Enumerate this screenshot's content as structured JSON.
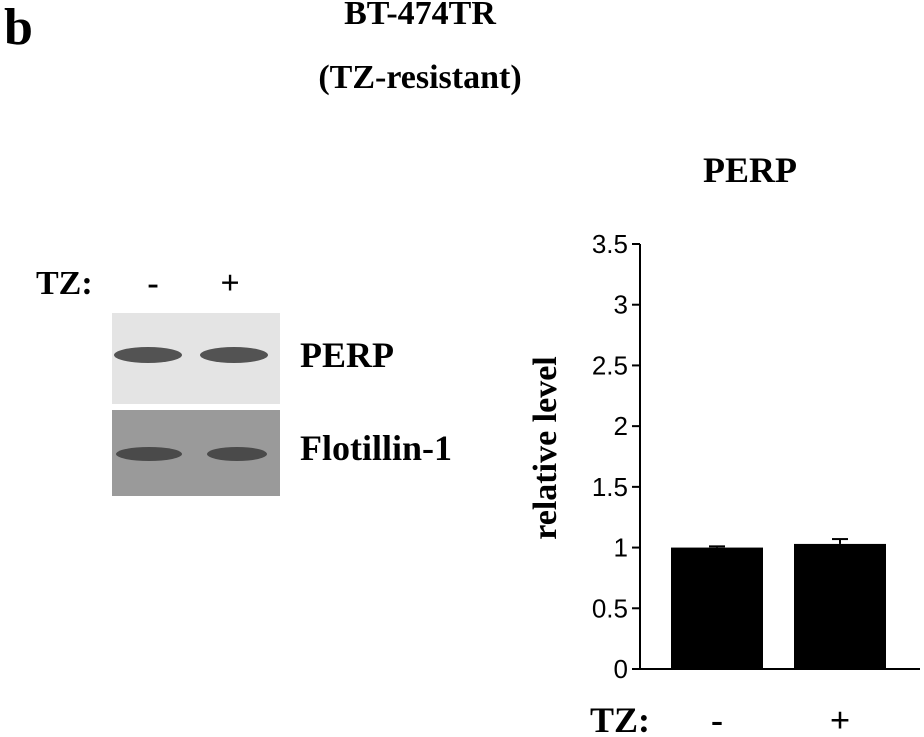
{
  "panel": {
    "letter": "b",
    "title_line1": "BT-474TR",
    "title_line2": "(TZ-resistant)"
  },
  "blot": {
    "treatment_label": "TZ:",
    "lanes": [
      "-",
      "+"
    ],
    "rows": [
      {
        "label": "PERP",
        "background": "#e4e4e4",
        "band_color": "#3a3a3a"
      },
      {
        "label": "Flotillin-1",
        "background": "#9a9a9a",
        "band_color": "#3c3c3c"
      }
    ]
  },
  "chart_data": {
    "type": "bar",
    "title": "PERP",
    "xlabel": "TZ:",
    "ylabel": "relative level",
    "categories": [
      "-",
      "+"
    ],
    "values": [
      1.0,
      1.03
    ],
    "errors": [
      0.01,
      0.04
    ],
    "ylim": [
      0,
      3.5
    ],
    "yticks": [
      0,
      0.5,
      1,
      1.5,
      2,
      2.5,
      3,
      3.5
    ],
    "ytick_labels": [
      "0",
      "0.5",
      "1",
      "1.5",
      "2",
      "2.5",
      "3",
      "3.5"
    ],
    "grid": false,
    "legend": "none",
    "bar_color": "#000000"
  }
}
